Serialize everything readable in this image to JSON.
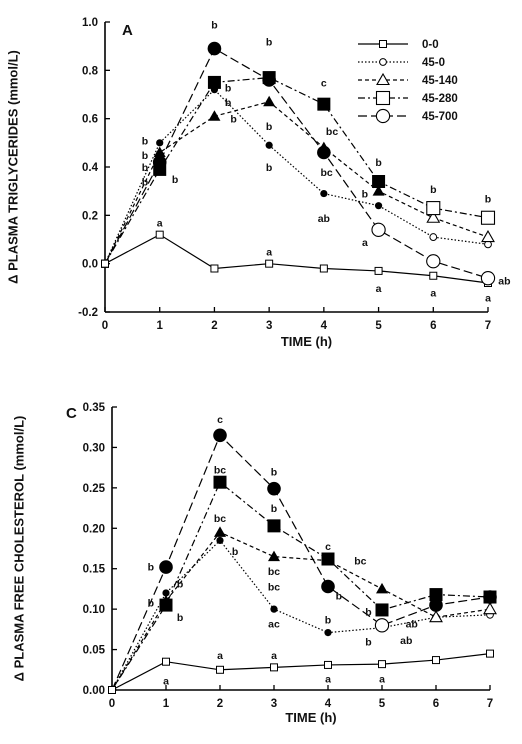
{
  "chart_data": [
    {
      "type": "line",
      "panel_label": "A",
      "xlabel": "TIME  (h)",
      "ylabel": "Δ  PLASMA  TRIGLYCERIDES  (mmol/L)",
      "x": [
        0,
        1,
        2,
        3,
        4,
        5,
        6,
        7
      ],
      "xlim": [
        0,
        7
      ],
      "ylim": [
        -0.2,
        1.0
      ],
      "yticks": [
        -0.2,
        0.0,
        0.2,
        0.4,
        0.6,
        0.8,
        1.0
      ],
      "ytick_labels": [
        "-0.2",
        "0.0",
        "0.2",
        "0.4",
        "0.6",
        "0.8",
        "1.0"
      ],
      "xticks": [
        0,
        1,
        2,
        3,
        4,
        5,
        6,
        7
      ],
      "xtick_labels": [
        "0",
        "1",
        "2",
        "3",
        "4",
        "5",
        "6",
        "7"
      ],
      "grid": false,
      "legend_position": "top-right",
      "series": [
        {
          "name": "0-0",
          "marker": "open-square-small",
          "dash": "solid",
          "values": [
            0.0,
            0.12,
            -0.02,
            0.0,
            -0.02,
            -0.03,
            -0.05,
            -0.08
          ]
        },
        {
          "name": "45-0",
          "marker": "circle-small",
          "dash": "dotted",
          "values": [
            0.0,
            0.5,
            0.72,
            0.49,
            0.29,
            0.24,
            0.11,
            0.08
          ]
        },
        {
          "name": "45-140",
          "marker": "triangle",
          "dash": "short-dash",
          "values": [
            0.0,
            0.46,
            0.61,
            0.67,
            0.48,
            0.3,
            0.19,
            0.11
          ]
        },
        {
          "name": "45-280",
          "marker": "square",
          "dash": "dash-dot",
          "values": [
            0.0,
            0.39,
            0.75,
            0.77,
            0.66,
            0.34,
            0.23,
            0.19
          ]
        },
        {
          "name": "45-700",
          "marker": "circle-large",
          "dash": "long-dash",
          "values": [
            0.0,
            0.42,
            0.89,
            0.76,
            0.46,
            0.14,
            0.01,
            -0.06
          ]
        }
      ],
      "annotations": [
        {
          "text": "b",
          "x": 2.0,
          "y": 0.99
        },
        {
          "text": "b",
          "x": 3.0,
          "y": 0.92
        },
        {
          "text": "c",
          "x": 4.0,
          "y": 0.75
        },
        {
          "text": "b",
          "x": 5.0,
          "y": 0.42
        },
        {
          "text": "b",
          "x": 6.0,
          "y": 0.31
        },
        {
          "text": "b",
          "x": 7.0,
          "y": 0.27
        },
        {
          "text": "b",
          "x": 0.73,
          "y": 0.51
        },
        {
          "text": "b",
          "x": 0.73,
          "y": 0.45
        },
        {
          "text": "b",
          "x": 0.73,
          "y": 0.4
        },
        {
          "text": "b",
          "x": 0.73,
          "y": 0.34
        },
        {
          "text": "b",
          "x": 1.28,
          "y": 0.35
        },
        {
          "text": "b",
          "x": 2.25,
          "y": 0.73
        },
        {
          "text": "b",
          "x": 2.25,
          "y": 0.67
        },
        {
          "text": "b",
          "x": 2.35,
          "y": 0.6
        },
        {
          "text": "b",
          "x": 3.0,
          "y": 0.57
        },
        {
          "text": "b",
          "x": 3.0,
          "y": 0.4
        },
        {
          "text": "bc",
          "x": 4.15,
          "y": 0.55
        },
        {
          "text": "bc",
          "x": 4.05,
          "y": 0.38
        },
        {
          "text": "b",
          "x": 4.75,
          "y": 0.29
        },
        {
          "text": "ab",
          "x": 4.0,
          "y": 0.19
        },
        {
          "text": "a",
          "x": 1.0,
          "y": 0.17
        },
        {
          "text": "a",
          "x": 3.0,
          "y": 0.05
        },
        {
          "text": "a",
          "x": 4.75,
          "y": 0.09
        },
        {
          "text": "a",
          "x": 5.0,
          "y": -0.1
        },
        {
          "text": "a",
          "x": 6.0,
          "y": -0.12
        },
        {
          "text": "a",
          "x": 7.0,
          "y": -0.14
        },
        {
          "text": "ab",
          "x": 7.3,
          "y": -0.07
        }
      ]
    },
    {
      "type": "line",
      "panel_label": "C",
      "xlabel": "TIME  (h)",
      "ylabel": "Δ  PLASMA  FREE  CHOLESTEROL  (mmol/L)",
      "x": [
        0,
        1,
        2,
        3,
        4,
        5,
        6,
        7
      ],
      "xlim": [
        0,
        7
      ],
      "ylim": [
        0.0,
        0.35
      ],
      "yticks": [
        0.0,
        0.05,
        0.1,
        0.15,
        0.2,
        0.25,
        0.3,
        0.35
      ],
      "ytick_labels": [
        "0.00",
        "0.05",
        "0.10",
        "0.15",
        "0.20",
        "0.25",
        "0.30",
        "0.35"
      ],
      "xticks": [
        0,
        1,
        2,
        3,
        4,
        5,
        6,
        7
      ],
      "xtick_labels": [
        "0",
        "1",
        "2",
        "3",
        "4",
        "5",
        "6",
        "7"
      ],
      "grid": false,
      "series": [
        {
          "name": "0-0",
          "marker": "open-square-small",
          "dash": "solid",
          "values": [
            0.0,
            0.035,
            0.025,
            0.028,
            0.031,
            0.032,
            0.037,
            0.045
          ]
        },
        {
          "name": "45-0",
          "marker": "circle-small",
          "dash": "dotted",
          "values": [
            0.0,
            0.12,
            0.185,
            0.1,
            0.071,
            0.077,
            0.09,
            0.093
          ]
        },
        {
          "name": "45-140",
          "marker": "triangle",
          "dash": "short-dash",
          "values": [
            0.0,
            0.11,
            0.195,
            0.165,
            0.16,
            0.125,
            0.09,
            0.1
          ]
        },
        {
          "name": "45-280",
          "marker": "square",
          "dash": "dash-dot",
          "values": [
            0.0,
            0.105,
            0.257,
            0.203,
            0.162,
            0.099,
            0.118,
            0.115
          ]
        },
        {
          "name": "45-700",
          "marker": "circle-large",
          "dash": "long-dash",
          "values": [
            0.0,
            0.152,
            0.315,
            0.249,
            0.128,
            0.08,
            0.105,
            0.115
          ]
        }
      ],
      "annotations": [
        {
          "text": "c",
          "x": 2.0,
          "y": 0.335
        },
        {
          "text": "bc",
          "x": 2.0,
          "y": 0.273
        },
        {
          "text": "bc",
          "x": 2.0,
          "y": 0.213
        },
        {
          "text": "b",
          "x": 3.0,
          "y": 0.27
        },
        {
          "text": "b",
          "x": 3.0,
          "y": 0.225
        },
        {
          "text": "c",
          "x": 4.0,
          "y": 0.178
        },
        {
          "text": "bc",
          "x": 3.0,
          "y": 0.147
        },
        {
          "text": "bc",
          "x": 3.0,
          "y": 0.128
        },
        {
          "text": "ac",
          "x": 3.0,
          "y": 0.082
        },
        {
          "text": "bc",
          "x": 4.6,
          "y": 0.16
        },
        {
          "text": "b",
          "x": 4.0,
          "y": 0.087
        },
        {
          "text": "b",
          "x": 4.2,
          "y": 0.117
        },
        {
          "text": "b",
          "x": 0.72,
          "y": 0.153
        },
        {
          "text": "b",
          "x": 0.72,
          "y": 0.108
        },
        {
          "text": "b",
          "x": 1.26,
          "y": 0.132
        },
        {
          "text": "b",
          "x": 1.26,
          "y": 0.09
        },
        {
          "text": "b",
          "x": 2.28,
          "y": 0.172
        },
        {
          "text": "b",
          "x": 4.75,
          "y": 0.097
        },
        {
          "text": "b",
          "x": 4.75,
          "y": 0.06
        },
        {
          "text": "ab",
          "x": 5.45,
          "y": 0.062
        },
        {
          "text": "ab",
          "x": 5.55,
          "y": 0.082
        },
        {
          "text": "a",
          "x": 1.0,
          "y": 0.012
        },
        {
          "text": "a",
          "x": 2.0,
          "y": 0.043
        },
        {
          "text": "a",
          "x": 3.0,
          "y": 0.043
        },
        {
          "text": "a",
          "x": 4.0,
          "y": 0.014
        },
        {
          "text": "a",
          "x": 5.0,
          "y": 0.014
        }
      ]
    }
  ]
}
